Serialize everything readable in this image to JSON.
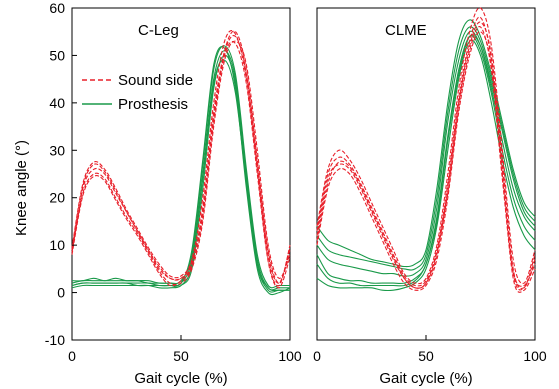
{
  "colors": {
    "sound_side": "#e8202a",
    "prosthesis": "#1a9a4a"
  },
  "ylabel": "Knee angle (°)",
  "legend": {
    "sound_label": "Sound side",
    "prosthesis_label": "Prosthesis"
  },
  "chart_data": [
    {
      "type": "line",
      "title": "C-Leg",
      "xlabel": "Gait cycle (%)",
      "ylabel": "Knee angle (°)",
      "xlim": [
        0,
        100
      ],
      "ylim": [
        -10,
        60
      ],
      "xticks": [
        0,
        50,
        100
      ],
      "yticks": [
        -10,
        0,
        10,
        20,
        30,
        40,
        50,
        60
      ],
      "legend_position": "upper-left",
      "series": [
        {
          "name": "Sound side",
          "color": "#e8202a",
          "dash": "dashed",
          "x": [
            0,
            5,
            10,
            15,
            20,
            25,
            30,
            35,
            40,
            45,
            50,
            55,
            60,
            65,
            70,
            75,
            80,
            85,
            90,
            95,
            100
          ],
          "ys": [
            [
              9,
              22,
              26,
              25,
              21,
              17,
              13,
              9,
              5,
              3,
              3,
              6,
              18,
              38,
              51,
              55,
              47,
              28,
              9,
              2,
              9
            ],
            [
              9.5,
              23,
              27.5,
              26,
              22,
              17.5,
              13.5,
              9.5,
              6,
              3.5,
              3.5,
              7,
              20,
              40,
              53,
              54.5,
              45,
              26,
              7,
              1.5,
              10
            ],
            [
              8.5,
              21,
              25,
              24,
              20,
              16,
              12.5,
              8.5,
              4.5,
              2,
              2,
              5,
              15,
              35,
              49,
              53,
              48,
              30,
              10,
              3,
              8
            ],
            [
              9,
              22.5,
              27,
              25.5,
              21.5,
              17,
              13,
              9,
              5.5,
              3,
              3,
              6.5,
              17,
              37,
              50.5,
              54,
              46,
              27,
              8,
              2,
              9.5
            ],
            [
              8,
              20.5,
              24.5,
              23.5,
              19.5,
              15.5,
              12,
              8,
              4,
              1.5,
              2.5,
              5.5,
              16,
              36,
              50,
              52.5,
              44,
              25,
              6.5,
              1,
              7.5
            ]
          ]
        },
        {
          "name": "Prosthesis",
          "color": "#1a9a4a",
          "dash": "solid",
          "x": [
            0,
            5,
            10,
            15,
            20,
            25,
            30,
            35,
            40,
            45,
            50,
            55,
            60,
            65,
            70,
            75,
            80,
            85,
            90,
            95,
            100
          ],
          "ys": [
            [
              1.5,
              2,
              2,
              2,
              2,
              2,
              2,
              2,
              1.5,
              1.5,
              2,
              7,
              25,
              45,
              51,
              45,
              25,
              7,
              1,
              1,
              1
            ],
            [
              2,
              2.5,
              2.5,
              2.5,
              2.5,
              2.5,
              2.5,
              2,
              2,
              2,
              2.5,
              8,
              27,
              47,
              52,
              46,
              26,
              8,
              1.5,
              1.5,
              1.5
            ],
            [
              1,
              1.5,
              1.5,
              1.5,
              1.5,
              1.5,
              1.5,
              1.5,
              1,
              1,
              1.5,
              5,
              22,
              43,
              50,
              44,
              24,
              6,
              0.5,
              0.5,
              0.5
            ],
            [
              2.5,
              2.5,
              3,
              2.5,
              3,
              2.5,
              2.5,
              2.5,
              2,
              2,
              2,
              9,
              28,
              48,
              51.5,
              43,
              22,
              5,
              0,
              0,
              1
            ],
            [
              1.5,
              2,
              2,
              2,
              2,
              2,
              1.5,
              1.5,
              1.5,
              1.5,
              1.5,
              6,
              24,
              44,
              49,
              42,
              23,
              6,
              1,
              0.5,
              0.5
            ]
          ]
        }
      ]
    },
    {
      "type": "line",
      "title": "CLME",
      "xlabel": "Gait cycle (%)",
      "xlim": [
        0,
        100
      ],
      "ylim": [
        -10,
        60
      ],
      "xticks": [
        0,
        50,
        100
      ],
      "series": [
        {
          "name": "Sound side",
          "color": "#e8202a",
          "dash": "dashed",
          "x": [
            0,
            5,
            10,
            15,
            20,
            25,
            30,
            35,
            40,
            45,
            50,
            55,
            60,
            65,
            70,
            75,
            80,
            85,
            90,
            95,
            100
          ],
          "ys": [
            [
              12,
              24,
              27,
              26,
              22,
              17,
              12,
              7,
              3,
              1,
              2,
              8,
              22,
              40,
              52,
              57,
              50,
              28,
              5,
              1,
              7
            ],
            [
              14,
              26,
              30,
              28,
              24,
              19,
              14,
              9,
              4,
              2,
              3,
              10,
              25,
              43,
              55,
              60,
              52,
              30,
              7,
              2,
              9
            ],
            [
              10,
              22,
              26,
              25,
              21,
              16,
              11,
              6,
              2,
              0.5,
              1.5,
              7,
              20,
              38,
              50,
              55,
              48,
              25,
              3,
              0.5,
              5
            ],
            [
              13,
              25,
              28.5,
              27,
              23,
              18,
              13,
              8,
              3.5,
              1.5,
              2.5,
              9,
              23,
              41,
              53,
              58,
              49,
              26,
              4,
              1,
              8
            ],
            [
              11,
              23,
              27.5,
              26.5,
              22.5,
              17.5,
              12.5,
              7.5,
              3,
              1,
              2,
              8.5,
              21,
              39,
              51,
              56,
              47,
              24,
              4.5,
              1.5,
              6
            ]
          ]
        },
        {
          "name": "Prosthesis",
          "color": "#1a9a4a",
          "dash": "solid",
          "x": [
            0,
            5,
            10,
            15,
            20,
            25,
            30,
            35,
            40,
            45,
            50,
            55,
            60,
            65,
            70,
            75,
            80,
            85,
            90,
            95,
            100
          ],
          "ys": [
            [
              12,
              9,
              8,
              7.5,
              7,
              6.5,
              6,
              5.5,
              5,
              5,
              8,
              20,
              38,
              51,
              56,
              53,
              45,
              35,
              25,
              18,
              15
            ],
            [
              14,
              11,
              10,
              9,
              8,
              7,
              6.5,
              6,
              5.5,
              6,
              9,
              22,
              40,
              53,
              57.5,
              54,
              46,
              36,
              26,
              19,
              16
            ],
            [
              10,
              7,
              6,
              5.5,
              5,
              4.5,
              4,
              4,
              3.5,
              4,
              7,
              18,
              36,
              49,
              55,
              52,
              43,
              32,
              22,
              16,
              13
            ],
            [
              8,
              4,
              3,
              2.5,
              2.5,
              2,
              2,
              2,
              2,
              3,
              6,
              16,
              33,
              47,
              54,
              51,
              42,
              30,
              20,
              14,
              11
            ],
            [
              3,
              1.5,
              1,
              1,
              1,
              1,
              0.5,
              0.5,
              1,
              2,
              5,
              14,
              30,
              45,
              53,
              50,
              40,
              28,
              18,
              12,
              9
            ],
            [
              6,
              3,
              2,
              2,
              1.5,
              1.5,
              1.5,
              1.5,
              1.5,
              2.5,
              6,
              15,
              32,
              46,
              54,
              52,
              44,
              34,
              24,
              17,
              14
            ]
          ]
        }
      ]
    }
  ]
}
